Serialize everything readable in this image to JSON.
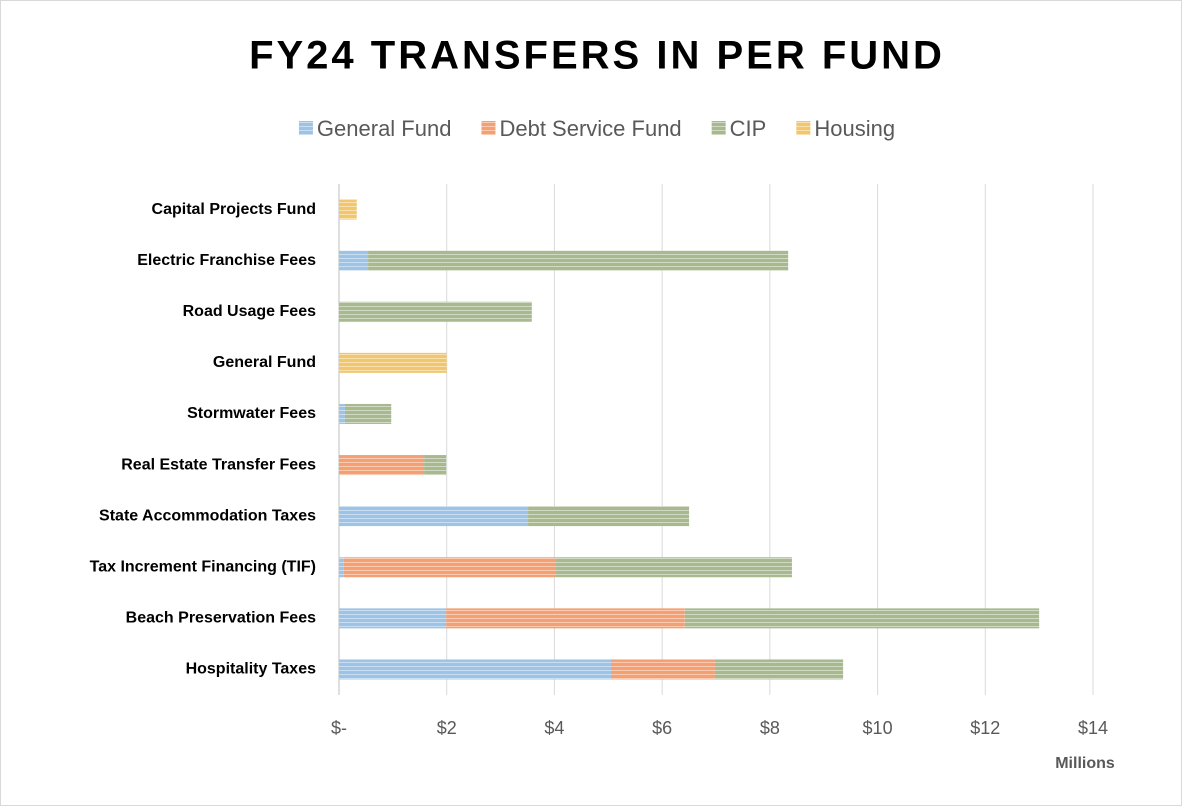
{
  "chart_data": {
    "type": "hbar_stacked",
    "title": "FY24 TRANSFERS IN PER FUND",
    "x_axis_label": "Millions",
    "categories": [
      "Capital Projects Fund",
      "Electric Franchise Fees",
      "Road Usage Fees",
      "General Fund",
      "Stormwater Fees",
      "Real Estate Transfer Fees",
      "State Accommodation Taxes",
      "Tax Increment Financing (TIF)",
      "Beach Preservation Fees",
      "Hospitality Taxes"
    ],
    "series": [
      {
        "name": "General Fund",
        "color": "#9dc3e6",
        "values": [
          0,
          0.54,
          0,
          0,
          0.11,
          0,
          3.51,
          0.09,
          1.99,
          5.05
        ]
      },
      {
        "name": "Debt Service Fund",
        "color": "#f4a072",
        "values": [
          0,
          0,
          0,
          0,
          0,
          1.58,
          0,
          3.94,
          4.43,
          1.93
        ]
      },
      {
        "name": "CIP",
        "color": "#a9b98f",
        "values": [
          0,
          7.8,
          3.58,
          0,
          0.86,
          0.41,
          2.99,
          4.38,
          6.58,
          2.38
        ]
      },
      {
        "name": "Housing",
        "color": "#f2c66d",
        "values": [
          0.33,
          0,
          0,
          2.0,
          0,
          0,
          0,
          0,
          0,
          0
        ]
      }
    ],
    "xlim": [
      0,
      14.7
    ],
    "xticks": [
      {
        "value": 0,
        "label": "$-"
      },
      {
        "value": 2,
        "label": "$2"
      },
      {
        "value": 4,
        "label": "$4"
      },
      {
        "value": 6,
        "label": "$6"
      },
      {
        "value": 8,
        "label": "$8"
      },
      {
        "value": 10,
        "label": "$10"
      },
      {
        "value": 12,
        "label": "$12"
      },
      {
        "value": 14,
        "label": "$14"
      }
    ],
    "grid": true
  }
}
